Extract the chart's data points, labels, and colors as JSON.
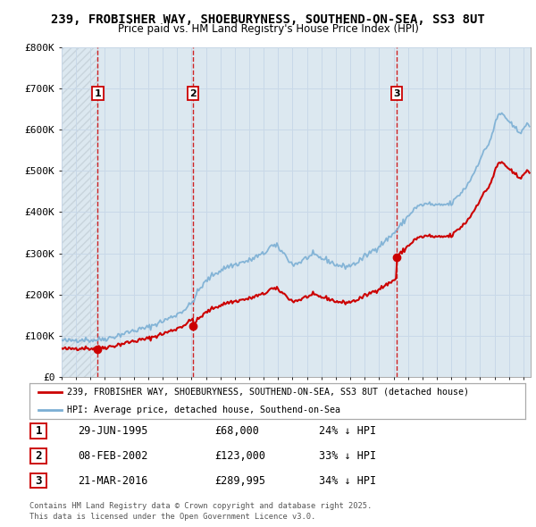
{
  "title": "239, FROBISHER WAY, SHOEBURYNESS, SOUTHEND-ON-SEA, SS3 8UT",
  "subtitle": "Price paid vs. HM Land Registry's House Price Index (HPI)",
  "legend_line1": "239, FROBISHER WAY, SHOEBURYNESS, SOUTHEND-ON-SEA, SS3 8UT (detached house)",
  "legend_line2": "HPI: Average price, detached house, Southend-on-Sea",
  "footer1": "Contains HM Land Registry data © Crown copyright and database right 2025.",
  "footer2": "This data is licensed under the Open Government Licence v3.0.",
  "sale_color": "#cc0000",
  "hpi_color": "#7bafd4",
  "vline_color": "#cc0000",
  "grid_color": "#c8d8e8",
  "bg_color": "#dce8f0",
  "hatch_color": "#c8d4dc",
  "ylim": [
    0,
    800000
  ],
  "yticks": [
    0,
    100000,
    200000,
    300000,
    400000,
    500000,
    600000,
    700000,
    800000
  ],
  "ytick_labels": [
    "£0",
    "£100K",
    "£200K",
    "£300K",
    "£400K",
    "£500K",
    "£600K",
    "£700K",
    "£800K"
  ],
  "sales": [
    {
      "date_year": 1995.49,
      "price": 68000,
      "label": "1"
    },
    {
      "date_year": 2002.1,
      "price": 123000,
      "label": "2"
    },
    {
      "date_year": 2016.22,
      "price": 289995,
      "label": "3"
    }
  ],
  "sale_table": [
    {
      "num": "1",
      "date": "29-JUN-1995",
      "price": "£68,000",
      "pct": "24% ↓ HPI"
    },
    {
      "num": "2",
      "date": "08-FEB-2002",
      "price": "£123,000",
      "pct": "33% ↓ HPI"
    },
    {
      "num": "3",
      "date": "21-MAR-2016",
      "price": "£289,995",
      "pct": "34% ↓ HPI"
    }
  ],
  "xmin": 1993.0,
  "xmax": 2025.5,
  "xtick_start": 1993,
  "xtick_end": 2025
}
